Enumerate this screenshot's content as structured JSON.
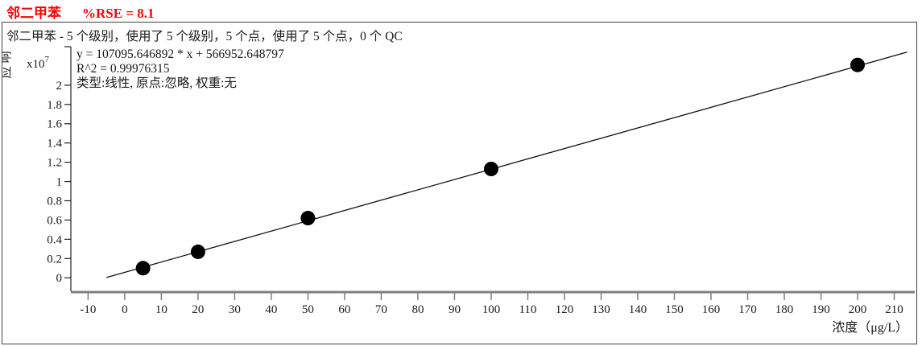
{
  "header": {
    "compound": "邻二甲苯",
    "rse": "%RSE = 8.1",
    "title_color": "#ff0000"
  },
  "chart_data": {
    "type": "scatter",
    "subtitle": "邻二甲苯 - 5 个级别，使用了 5 个级别，5 个点，使用了 5 个点，0 个 QC",
    "equation_line": "y = 107095.646892 * x  + 566952.648797",
    "r2_line": "R^2 = 0.99976315",
    "fit_desc_line": "类型:线性, 原点:忽略, 权重:无",
    "fit": {
      "slope": 107095.646892,
      "intercept": 566952.648797,
      "r_squared": 0.99976315,
      "type_label": "线性",
      "origin_label": "忽略",
      "weight_label": "无"
    },
    "ylabel": "响应",
    "y_scale_label": "x10",
    "y_scale_exponent": "7",
    "y_axis_multiplier": 10000000,
    "xlabel": "浓度（μg/L）",
    "x_ticks": [
      -10,
      0,
      10,
      20,
      30,
      40,
      50,
      60,
      70,
      80,
      90,
      100,
      110,
      120,
      130,
      140,
      150,
      160,
      170,
      180,
      190,
      200,
      210
    ],
    "y_ticks": [
      {
        "label": "0",
        "value": 0
      },
      {
        "label": "0.2",
        "value": 0.2
      },
      {
        "label": "0.4",
        "value": 0.4
      },
      {
        "label": "0.6",
        "value": 0.6
      },
      {
        "label": "0.8",
        "value": 0.8
      },
      {
        "label": "1",
        "value": 1
      },
      {
        "label": "1.2",
        "value": 1.2
      },
      {
        "label": "1.4",
        "value": 1.4
      },
      {
        "label": "1.6",
        "value": 1.6
      },
      {
        "label": "1.8",
        "value": 1.8
      },
      {
        "label": "2",
        "value": 2
      }
    ],
    "xlim": [
      -14.7,
      215.6
    ],
    "ylim": [
      -0.14,
      2.4
    ],
    "grid": false,
    "legend": false,
    "fit_line_x_range": [
      -5,
      213.5
    ],
    "points": [
      {
        "conc": 5,
        "response_x10e7": 0.1
      },
      {
        "conc": 20,
        "response_x10e7": 0.27
      },
      {
        "conc": 50,
        "response_x10e7": 0.62
      },
      {
        "conc": 100,
        "response_x10e7": 1.13
      },
      {
        "conc": 200,
        "response_x10e7": 2.21
      }
    ],
    "qc_count": 0,
    "levels_total": 5,
    "levels_used": 5,
    "points_total": 5,
    "points_used": 5
  }
}
